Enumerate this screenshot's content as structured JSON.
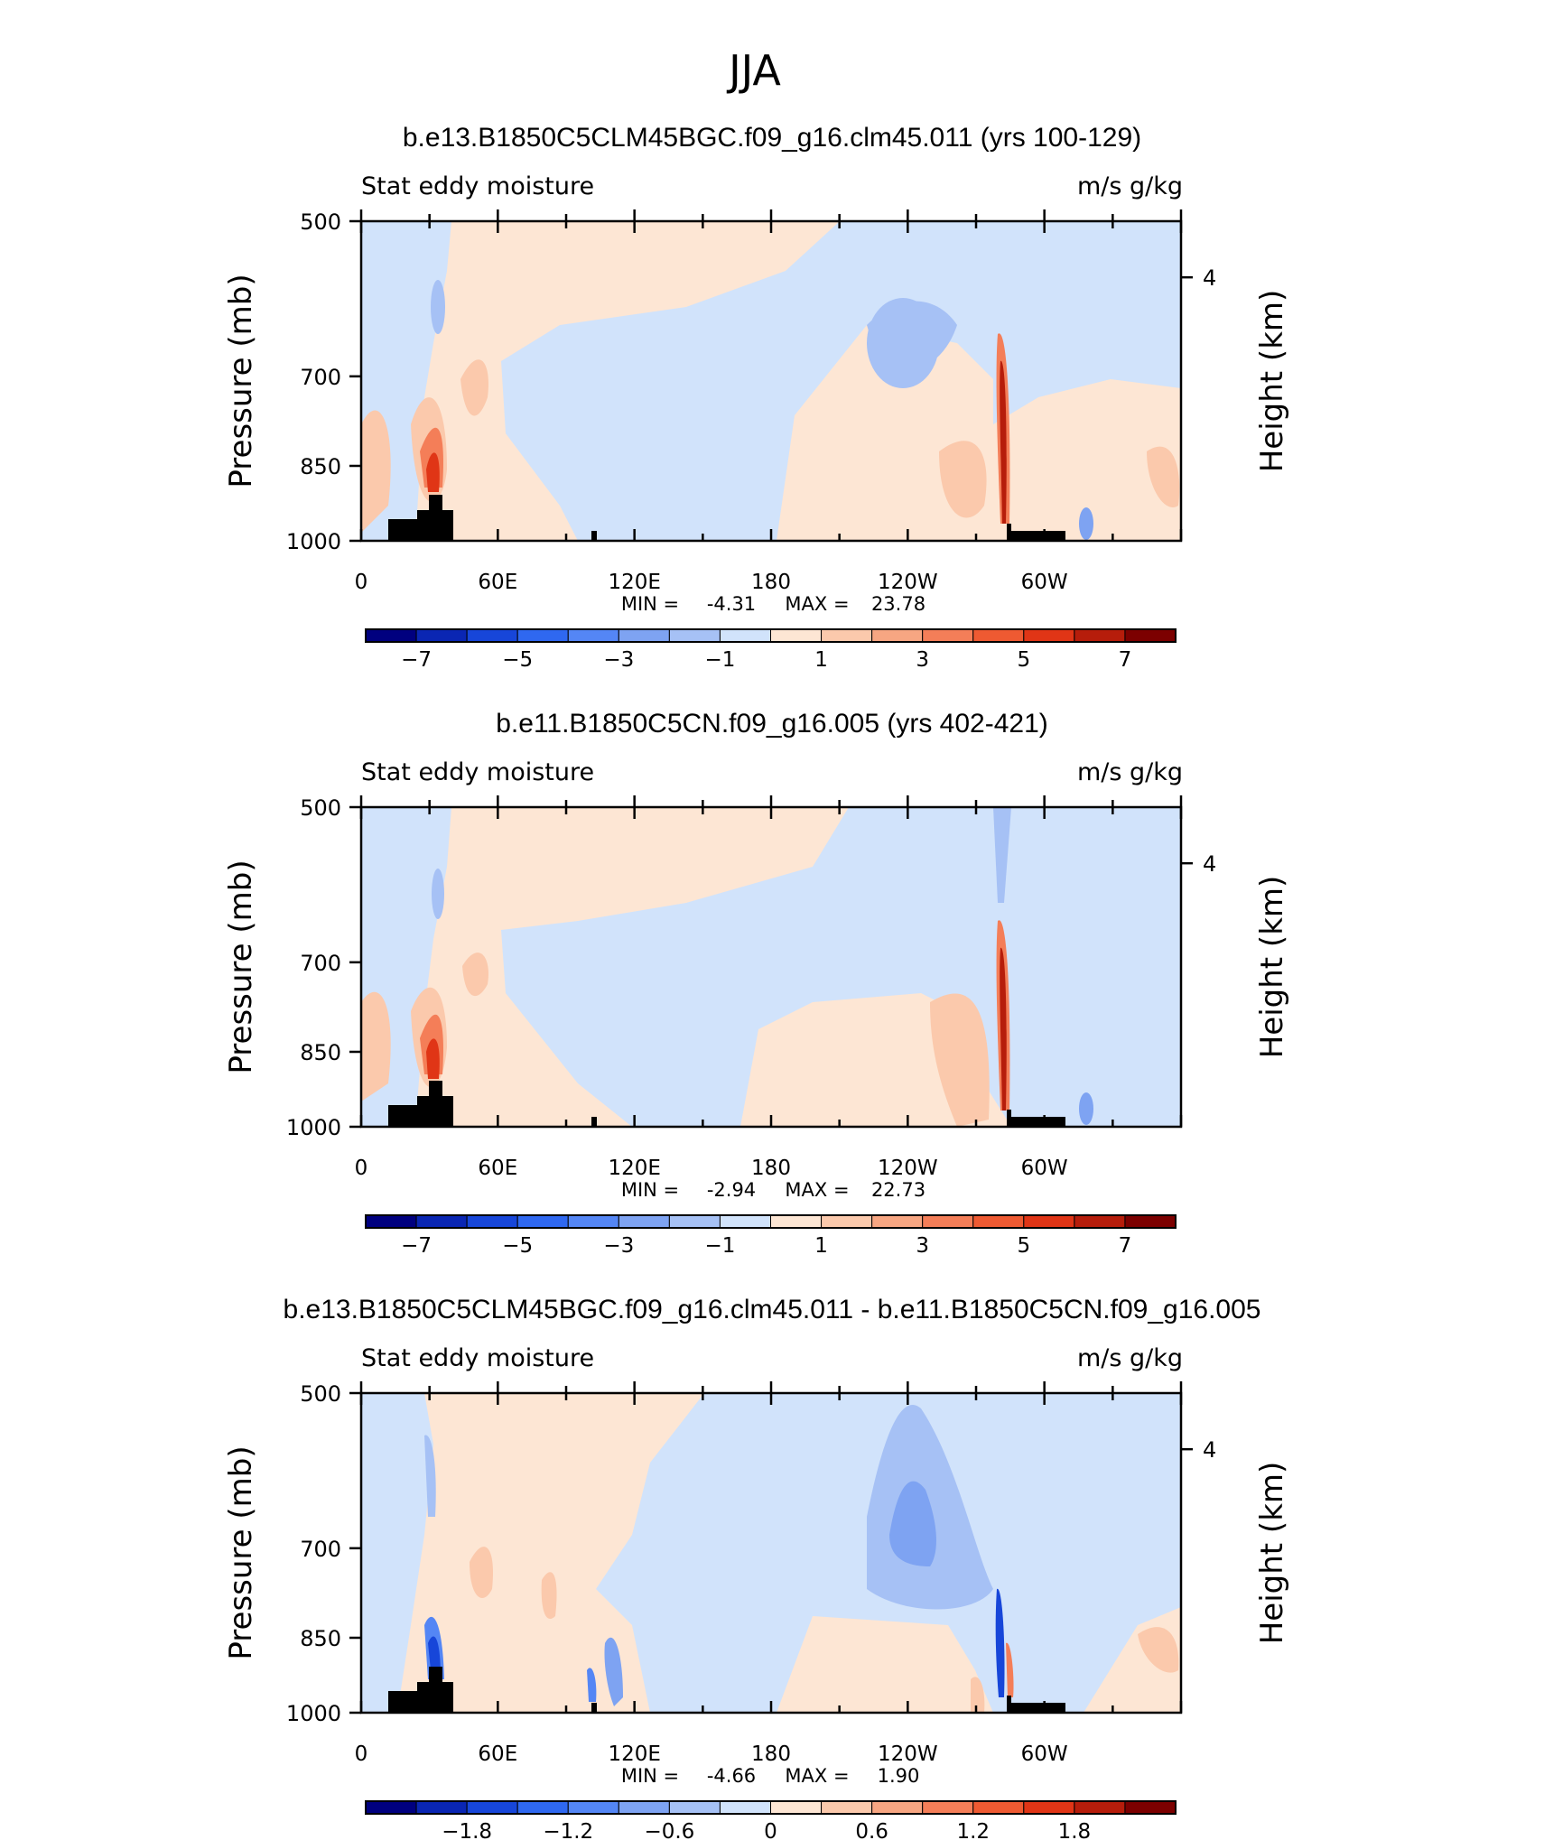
{
  "figure_title": "JJA",
  "chart_data": [
    {
      "type": "heatmap",
      "title": "b.e13.B1850C5CLM45BGC.f09_g16.clm45.011 (yrs 100-129)",
      "left_label": "Stat eddy moisture",
      "right_label": "m/s g/kg",
      "ylabel": "Pressure (mb)",
      "ylabel_right": "Height (km)",
      "yticks": [
        "500",
        "700",
        "850",
        "1000"
      ],
      "ytick_values": [
        500,
        700,
        850,
        1000
      ],
      "right_ticks": [
        "4"
      ],
      "right_tick_values": [
        4
      ],
      "xticks": [
        "0",
        "60E",
        "120E",
        "180",
        "120W",
        "60W"
      ],
      "xtick_values": [
        0,
        60,
        120,
        180,
        240,
        300
      ],
      "xlim": [
        0,
        360
      ],
      "ylim": [
        1000,
        500
      ],
      "min_label": "MIN =",
      "min_value": "-4.31",
      "max_label": "MAX =",
      "max_value": "23.78",
      "colorbar_labels": [
        "-7",
        "-5",
        "-3",
        "-1",
        "1",
        "3",
        "5",
        "7"
      ],
      "colorbar_levels": [
        -8,
        -7,
        -6,
        -5,
        -4,
        -3,
        -2,
        -1,
        0,
        1,
        2,
        3,
        4,
        5,
        6,
        7,
        8
      ]
    },
    {
      "type": "heatmap",
      "title": "b.e11.B1850C5CN.f09_g16.005 (yrs 402-421)",
      "left_label": "Stat eddy moisture",
      "right_label": "m/s g/kg",
      "ylabel": "Pressure (mb)",
      "ylabel_right": "Height (km)",
      "yticks": [
        "500",
        "700",
        "850",
        "1000"
      ],
      "ytick_values": [
        500,
        700,
        850,
        1000
      ],
      "right_ticks": [
        "4"
      ],
      "right_tick_values": [
        4
      ],
      "xticks": [
        "0",
        "60E",
        "120E",
        "180",
        "120W",
        "60W"
      ],
      "xtick_values": [
        0,
        60,
        120,
        180,
        240,
        300
      ],
      "xlim": [
        0,
        360
      ],
      "ylim": [
        1000,
        500
      ],
      "min_label": "MIN =",
      "min_value": "-2.94",
      "max_label": "MAX =",
      "max_value": "22.73",
      "colorbar_labels": [
        "-7",
        "-5",
        "-3",
        "-1",
        "1",
        "3",
        "5",
        "7"
      ],
      "colorbar_levels": [
        -8,
        -7,
        -6,
        -5,
        -4,
        -3,
        -2,
        -1,
        0,
        1,
        2,
        3,
        4,
        5,
        6,
        7,
        8
      ]
    },
    {
      "type": "heatmap",
      "title": "b.e13.B1850C5CLM45BGC.f09_g16.clm45.011 - b.e11.B1850C5CN.f09_g16.005",
      "left_label": "Stat eddy moisture",
      "right_label": "m/s g/kg",
      "ylabel": "Pressure (mb)",
      "ylabel_right": "Height (km)",
      "yticks": [
        "500",
        "700",
        "850",
        "1000"
      ],
      "ytick_values": [
        500,
        700,
        850,
        1000
      ],
      "right_ticks": [
        "4"
      ],
      "right_tick_values": [
        4
      ],
      "xticks": [
        "0",
        "60E",
        "120E",
        "180",
        "120W",
        "60W"
      ],
      "xtick_values": [
        0,
        60,
        120,
        180,
        240,
        300
      ],
      "xlim": [
        0,
        360
      ],
      "ylim": [
        1000,
        500
      ],
      "min_label": "MIN =",
      "min_value": "-4.66",
      "max_label": "MAX =",
      "max_value": "1.90",
      "colorbar_labels": [
        "-1.8",
        "-1.2",
        "-0.6",
        "0",
        "0.6",
        "1.2",
        "1.8"
      ],
      "colorbar_levels": [
        -2.4,
        -2.1,
        -1.8,
        -1.5,
        -1.2,
        -0.9,
        -0.6,
        -0.3,
        0,
        0.3,
        0.6,
        0.9,
        1.2,
        1.5,
        1.8,
        2.1,
        2.4
      ]
    }
  ],
  "colormap": [
    "#00007f",
    "#0a26b3",
    "#1746d9",
    "#2f68f0",
    "#5486f5",
    "#7ea3f2",
    "#a6c1f5",
    "#d1e3fb",
    "#fde6d4",
    "#fbc9ac",
    "#f7a682",
    "#f47e58",
    "#ee5a32",
    "#e03516",
    "#b61d0b",
    "#7c0000"
  ]
}
